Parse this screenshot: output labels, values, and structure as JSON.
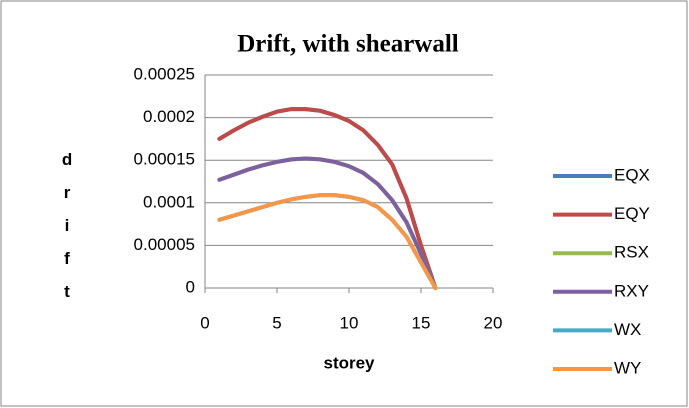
{
  "chart_data": {
    "type": "line",
    "title": "Drift, with shearwall",
    "xlabel": "storey",
    "ylabel": "drift",
    "x": [
      1,
      2,
      3,
      4,
      5,
      6,
      7,
      8,
      9,
      10,
      11,
      12,
      13,
      14,
      15,
      16
    ],
    "series": [
      {
        "name": "EQX",
        "color": "#4a7ebb",
        "values": [
          0.000175,
          0.000185,
          0.000194,
          0.000201,
          0.000207,
          0.00021,
          0.00021,
          0.000208,
          0.000203,
          0.000196,
          0.000185,
          0.000168,
          0.000145,
          0.000105,
          5e-05,
          0
        ]
      },
      {
        "name": "EQY",
        "color": "#be4b48",
        "values": [
          0.000175,
          0.000185,
          0.000194,
          0.000201,
          0.000207,
          0.00021,
          0.00021,
          0.000208,
          0.000203,
          0.000196,
          0.000185,
          0.000168,
          0.000145,
          0.000105,
          5e-05,
          0
        ]
      },
      {
        "name": "RSX",
        "color": "#98b954",
        "values": [
          0.000127,
          0.000133,
          0.000139,
          0.000144,
          0.000148,
          0.000151,
          0.000152,
          0.000151,
          0.000148,
          0.000143,
          0.000135,
          0.000122,
          0.000103,
          7.7e-05,
          4e-05,
          0
        ]
      },
      {
        "name": "RXY",
        "color": "#7d60a0",
        "values": [
          0.000127,
          0.000133,
          0.000139,
          0.000144,
          0.000148,
          0.000151,
          0.000152,
          0.000151,
          0.000148,
          0.000143,
          0.000135,
          0.000122,
          0.000103,
          7.7e-05,
          4e-05,
          0
        ]
      },
      {
        "name": "WX",
        "color": "#46aac5",
        "values": [
          8e-05,
          8.5e-05,
          9e-05,
          9.5e-05,
          0.0001,
          0.000104,
          0.000107,
          0.000109,
          0.000109,
          0.000107,
          0.000103,
          9.5e-05,
          8e-05,
          6e-05,
          3e-05,
          0
        ]
      },
      {
        "name": "WY",
        "color": "#f79646",
        "values": [
          8e-05,
          8.5e-05,
          9e-05,
          9.5e-05,
          0.0001,
          0.000104,
          0.000107,
          0.000109,
          0.000109,
          0.000107,
          0.000103,
          9.5e-05,
          8e-05,
          6e-05,
          3e-05,
          0
        ]
      }
    ],
    "xlim": [
      0,
      20
    ],
    "xticks": [
      0,
      5,
      10,
      15,
      20
    ],
    "ylim": [
      0,
      0.00025
    ],
    "yticks": [
      0,
      5e-05,
      0.0001,
      0.00015,
      0.0002,
      0.00025
    ],
    "grid": true,
    "legend": "right"
  }
}
